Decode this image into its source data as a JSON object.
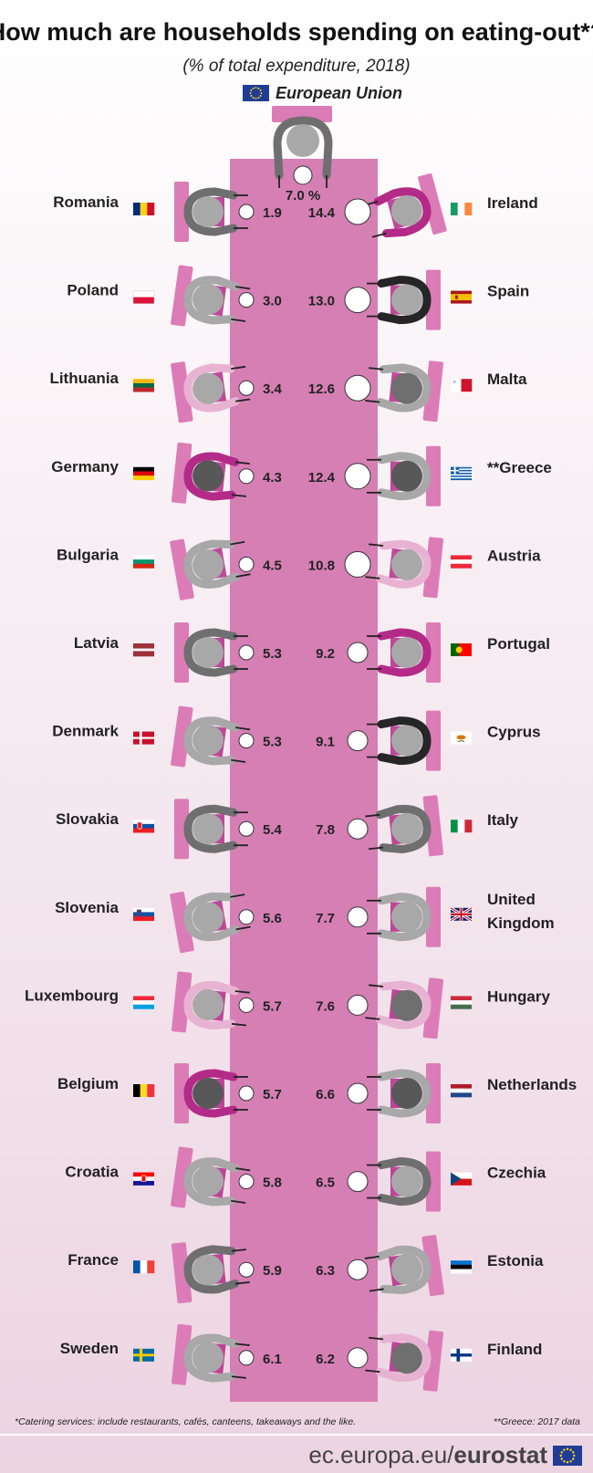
{
  "chart_data": {
    "type": "bar",
    "title": "How much are households spending on eating-out*?",
    "subtitle": "(% of total expenditure, 2018)",
    "eu": {
      "label": "European Union",
      "value_label": "7.0 %",
      "value": 7.0
    },
    "left": [
      {
        "country": "Romania",
        "value": 1.9,
        "value_label": "1.9",
        "flag": "romania"
      },
      {
        "country": "Poland",
        "value": 3.0,
        "value_label": "3.0",
        "flag": "poland"
      },
      {
        "country": "Lithuania",
        "value": 3.4,
        "value_label": "3.4",
        "flag": "lithuania"
      },
      {
        "country": "Germany",
        "value": 4.3,
        "value_label": "4.3",
        "flag": "germany"
      },
      {
        "country": "Bulgaria",
        "value": 4.5,
        "value_label": "4.5",
        "flag": "bulgaria"
      },
      {
        "country": "Latvia",
        "value": 5.3,
        "value_label": "5.3",
        "flag": "latvia"
      },
      {
        "country": "Denmark",
        "value": 5.3,
        "value_label": "5.3",
        "flag": "denmark"
      },
      {
        "country": "Slovakia",
        "value": 5.4,
        "value_label": "5.4",
        "flag": "slovakia"
      },
      {
        "country": "Slovenia",
        "value": 5.6,
        "value_label": "5.6",
        "flag": "slovenia"
      },
      {
        "country": "Luxembourg",
        "value": 5.7,
        "value_label": "5.7",
        "flag": "luxembourg"
      },
      {
        "country": "Belgium",
        "value": 5.7,
        "value_label": "5.7",
        "flag": "belgium"
      },
      {
        "country": "Croatia",
        "value": 5.8,
        "value_label": "5.8",
        "flag": "croatia"
      },
      {
        "country": "France",
        "value": 5.9,
        "value_label": "5.9",
        "flag": "france"
      },
      {
        "country": "Sweden",
        "value": 6.1,
        "value_label": "6.1",
        "flag": "sweden"
      }
    ],
    "right": [
      {
        "country": "Ireland",
        "value": 14.4,
        "value_label": "14.4",
        "flag": "ireland"
      },
      {
        "country": "Spain",
        "value": 13.0,
        "value_label": "13.0",
        "flag": "spain"
      },
      {
        "country": "Malta",
        "value": 12.6,
        "value_label": "12.6",
        "flag": "malta"
      },
      {
        "country": "**Greece",
        "value": 12.4,
        "value_label": "12.4",
        "flag": "greece"
      },
      {
        "country": "Austria",
        "value": 10.8,
        "value_label": "10.8",
        "flag": "austria"
      },
      {
        "country": "Portugal",
        "value": 9.2,
        "value_label": "9.2",
        "flag": "portugal"
      },
      {
        "country": "Cyprus",
        "value": 9.1,
        "value_label": "9.1",
        "flag": "cyprus"
      },
      {
        "country": "Italy",
        "value": 7.8,
        "value_label": "7.8",
        "flag": "italy"
      },
      {
        "country": "United\nKingdom",
        "value": 7.7,
        "value_label": "7.7",
        "flag": "uk"
      },
      {
        "country": "Hungary",
        "value": 7.6,
        "value_label": "7.6",
        "flag": "hungary"
      },
      {
        "country": "Netherlands",
        "value": 6.6,
        "value_label": "6.6",
        "flag": "netherlands"
      },
      {
        "country": "Czechia",
        "value": 6.5,
        "value_label": "6.5",
        "flag": "czechia"
      },
      {
        "country": "Estonia",
        "value": 6.3,
        "value_label": "6.3",
        "flag": "estonia"
      },
      {
        "country": "Finland",
        "value": 6.2,
        "value_label": "6.2",
        "flag": "finland"
      }
    ]
  },
  "footnote_left": "*Catering services: include restaurants, cafés, canteens, takeaways and the like.",
  "footnote_right": "**Greece: 2017 data",
  "brand": {
    "url": "ec.europa.eu/",
    "name": "eurostat"
  },
  "colors": {
    "table": "#d67fb5",
    "chair": "#dc7cb7",
    "grey": "#a8a8a8",
    "dark_grey": "#6f6f6f",
    "charcoal": "#585858",
    "magenta": "#b42a88",
    "light_pink": "#e8b3d2",
    "black": "#262626",
    "eu_blue": "#1f3c96",
    "eu_yellow": "#ffd617"
  }
}
